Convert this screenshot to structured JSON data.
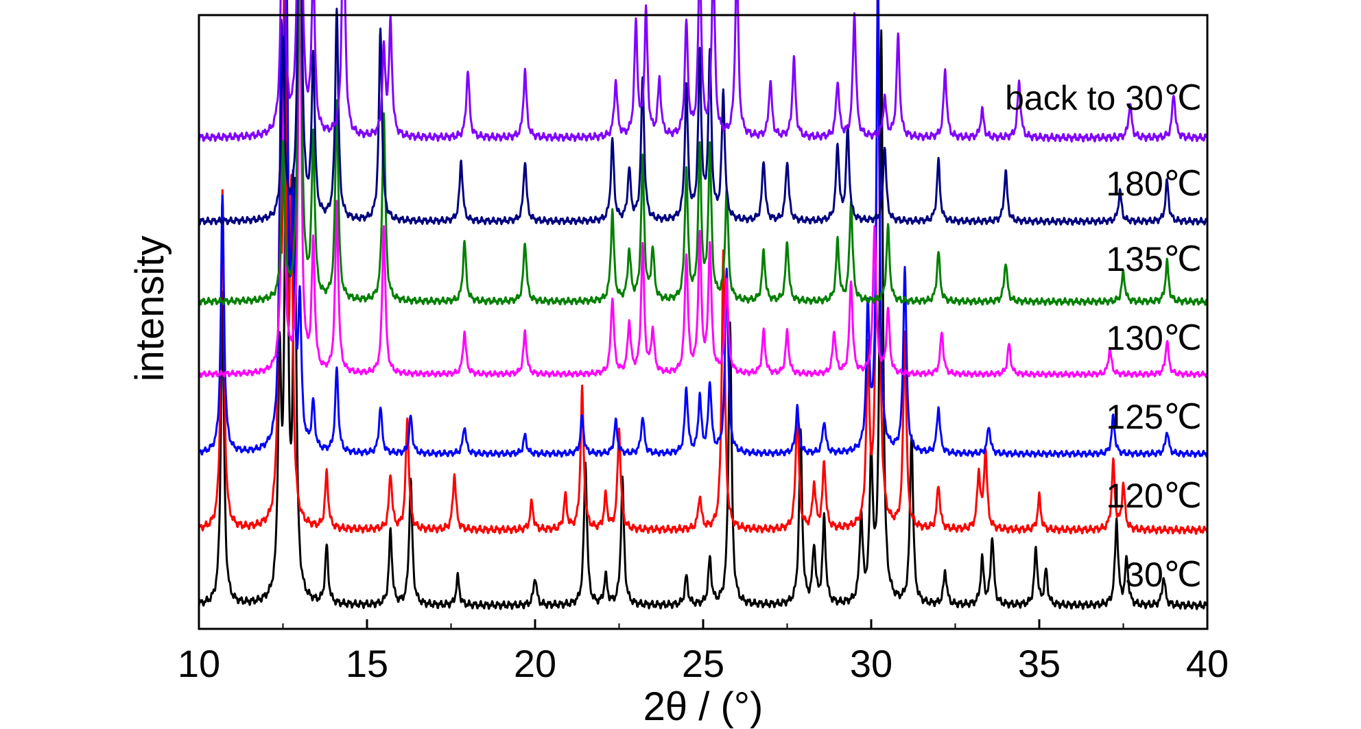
{
  "chart_data": {
    "type": "line",
    "xlabel": "2θ / (°)",
    "ylabel": "intensity",
    "xlim": [
      10,
      40
    ],
    "x_ticks": [
      10,
      15,
      20,
      25,
      30,
      35,
      40
    ],
    "x_tick_labels": [
      "10",
      "15",
      "20",
      "25",
      "30",
      "35",
      "40"
    ],
    "grid": false,
    "legend": "inline labels at right of each trace",
    "series": [
      {
        "name": "30℃",
        "color": "#000000",
        "peaks": [
          [
            10.7,
            0.55
          ],
          [
            12.4,
            0.4
          ],
          [
            12.6,
            1.0
          ],
          [
            12.85,
            0.7
          ],
          [
            13.8,
            0.1
          ],
          [
            15.7,
            0.13
          ],
          [
            16.3,
            0.22
          ],
          [
            17.7,
            0.05
          ],
          [
            20.0,
            0.05
          ],
          [
            21.5,
            0.25
          ],
          [
            22.1,
            0.05
          ],
          [
            22.6,
            0.22
          ],
          [
            24.5,
            0.05
          ],
          [
            25.2,
            0.08
          ],
          [
            25.8,
            0.5
          ],
          [
            27.9,
            0.3
          ],
          [
            28.3,
            0.1
          ],
          [
            28.6,
            0.15
          ],
          [
            29.7,
            0.15
          ],
          [
            30.0,
            0.25
          ],
          [
            30.3,
            1.0
          ],
          [
            31.2,
            0.3
          ],
          [
            32.2,
            0.06
          ],
          [
            33.3,
            0.08
          ],
          [
            33.6,
            0.12
          ],
          [
            34.9,
            0.1
          ],
          [
            35.2,
            0.06
          ],
          [
            37.3,
            0.15
          ],
          [
            37.6,
            0.08
          ],
          [
            38.7,
            0.05
          ]
        ]
      },
      {
        "name": "120℃",
        "color": "#ff0000",
        "peaks": [
          [
            10.7,
            0.6
          ],
          [
            12.4,
            0.45
          ],
          [
            12.55,
            1.0
          ],
          [
            12.75,
            0.55
          ],
          [
            13.8,
            0.1
          ],
          [
            15.7,
            0.1
          ],
          [
            16.2,
            0.2
          ],
          [
            17.6,
            0.1
          ],
          [
            19.9,
            0.05
          ],
          [
            20.9,
            0.06
          ],
          [
            21.4,
            0.25
          ],
          [
            22.1,
            0.06
          ],
          [
            22.5,
            0.18
          ],
          [
            24.9,
            0.06
          ],
          [
            25.6,
            0.5
          ],
          [
            27.8,
            0.22
          ],
          [
            28.3,
            0.08
          ],
          [
            28.6,
            0.12
          ],
          [
            29.9,
            0.3
          ],
          [
            30.2,
            1.0
          ],
          [
            31.0,
            0.35
          ],
          [
            32.0,
            0.08
          ],
          [
            33.2,
            0.1
          ],
          [
            33.4,
            0.14
          ],
          [
            35.0,
            0.06
          ],
          [
            37.2,
            0.12
          ],
          [
            37.5,
            0.08
          ]
        ]
      },
      {
        "name": "125℃",
        "color": "#0000ff",
        "peaks": [
          [
            10.7,
            0.55
          ],
          [
            12.45,
            0.8
          ],
          [
            12.6,
            1.0
          ],
          [
            12.8,
            0.5
          ],
          [
            13.0,
            0.3
          ],
          [
            13.4,
            0.1
          ],
          [
            14.1,
            0.18
          ],
          [
            15.4,
            0.1
          ],
          [
            16.3,
            0.08
          ],
          [
            17.9,
            0.06
          ],
          [
            19.7,
            0.04
          ],
          [
            21.4,
            0.08
          ],
          [
            22.4,
            0.07
          ],
          [
            23.2,
            0.08
          ],
          [
            24.5,
            0.14
          ],
          [
            24.9,
            0.12
          ],
          [
            25.2,
            0.15
          ],
          [
            25.7,
            0.4
          ],
          [
            27.8,
            0.1
          ],
          [
            28.6,
            0.07
          ],
          [
            29.9,
            0.3
          ],
          [
            30.2,
            1.0
          ],
          [
            31.0,
            0.4
          ],
          [
            32.0,
            0.1
          ],
          [
            33.5,
            0.06
          ],
          [
            37.2,
            0.08
          ],
          [
            38.8,
            0.05
          ]
        ]
      },
      {
        "name": "130℃",
        "color": "#ff00ff",
        "peaks": [
          [
            12.5,
            0.75
          ],
          [
            13.0,
            1.0
          ],
          [
            13.4,
            0.3
          ],
          [
            14.1,
            0.4
          ],
          [
            15.5,
            0.35
          ],
          [
            17.9,
            0.1
          ],
          [
            19.7,
            0.1
          ],
          [
            22.3,
            0.18
          ],
          [
            22.8,
            0.12
          ],
          [
            23.2,
            0.3
          ],
          [
            23.5,
            0.1
          ],
          [
            24.5,
            0.28
          ],
          [
            24.9,
            0.32
          ],
          [
            25.2,
            0.3
          ],
          [
            25.7,
            0.22
          ],
          [
            26.8,
            0.1
          ],
          [
            27.5,
            0.1
          ],
          [
            28.9,
            0.1
          ],
          [
            29.4,
            0.22
          ],
          [
            30.1,
            0.35
          ],
          [
            30.5,
            0.15
          ],
          [
            32.1,
            0.1
          ],
          [
            34.1,
            0.07
          ],
          [
            37.1,
            0.06
          ],
          [
            38.8,
            0.08
          ]
        ]
      },
      {
        "name": "135℃",
        "color": "#008000",
        "peaks": [
          [
            12.5,
            0.3
          ],
          [
            13.0,
            1.0
          ],
          [
            13.4,
            0.32
          ],
          [
            14.1,
            0.4
          ],
          [
            15.5,
            0.38
          ],
          [
            17.9,
            0.12
          ],
          [
            19.7,
            0.12
          ],
          [
            22.3,
            0.18
          ],
          [
            22.8,
            0.1
          ],
          [
            23.2,
            0.28
          ],
          [
            23.5,
            0.1
          ],
          [
            24.5,
            0.26
          ],
          [
            24.9,
            0.3
          ],
          [
            25.2,
            0.3
          ],
          [
            25.7,
            0.22
          ],
          [
            26.8,
            0.1
          ],
          [
            27.5,
            0.12
          ],
          [
            29.0,
            0.12
          ],
          [
            29.4,
            0.2
          ],
          [
            30.5,
            0.15
          ],
          [
            32.0,
            0.1
          ],
          [
            34.0,
            0.08
          ],
          [
            37.5,
            0.06
          ],
          [
            38.8,
            0.08
          ]
        ]
      },
      {
        "name": "180℃",
        "color": "#000080",
        "peaks": [
          [
            12.5,
            0.35
          ],
          [
            13.0,
            1.0
          ],
          [
            13.4,
            0.32
          ],
          [
            14.1,
            0.42
          ],
          [
            15.4,
            0.38
          ],
          [
            17.8,
            0.12
          ],
          [
            19.7,
            0.12
          ],
          [
            22.3,
            0.16
          ],
          [
            22.8,
            0.1
          ],
          [
            23.2,
            0.28
          ],
          [
            24.5,
            0.26
          ],
          [
            24.9,
            0.32
          ],
          [
            25.2,
            0.32
          ],
          [
            25.6,
            0.25
          ],
          [
            26.8,
            0.12
          ],
          [
            27.5,
            0.12
          ],
          [
            29.0,
            0.15
          ],
          [
            29.3,
            0.18
          ],
          [
            30.4,
            0.15
          ],
          [
            32.0,
            0.12
          ],
          [
            34.0,
            0.1
          ],
          [
            37.4,
            0.06
          ],
          [
            38.8,
            0.08
          ]
        ]
      },
      {
        "name": "back to 30℃",
        "color": "#8000ff",
        "peaks": [
          [
            12.5,
            0.6
          ],
          [
            13.0,
            1.0
          ],
          [
            13.4,
            0.3
          ],
          [
            14.3,
            0.45
          ],
          [
            15.5,
            0.15
          ],
          [
            15.7,
            0.2
          ],
          [
            18.0,
            0.12
          ],
          [
            19.7,
            0.12
          ],
          [
            22.4,
            0.1
          ],
          [
            23.0,
            0.2
          ],
          [
            23.3,
            0.22
          ],
          [
            23.7,
            0.1
          ],
          [
            24.5,
            0.2
          ],
          [
            24.9,
            0.32
          ],
          [
            25.3,
            0.32
          ],
          [
            26.0,
            0.32
          ],
          [
            27.0,
            0.1
          ],
          [
            27.7,
            0.14
          ],
          [
            29.0,
            0.1
          ],
          [
            29.5,
            0.22
          ],
          [
            30.4,
            0.07
          ],
          [
            30.8,
            0.18
          ],
          [
            32.2,
            0.12
          ],
          [
            33.3,
            0.05
          ],
          [
            34.4,
            0.1
          ],
          [
            37.7,
            0.06
          ],
          [
            39.0,
            0.08
          ]
        ]
      }
    ]
  }
}
